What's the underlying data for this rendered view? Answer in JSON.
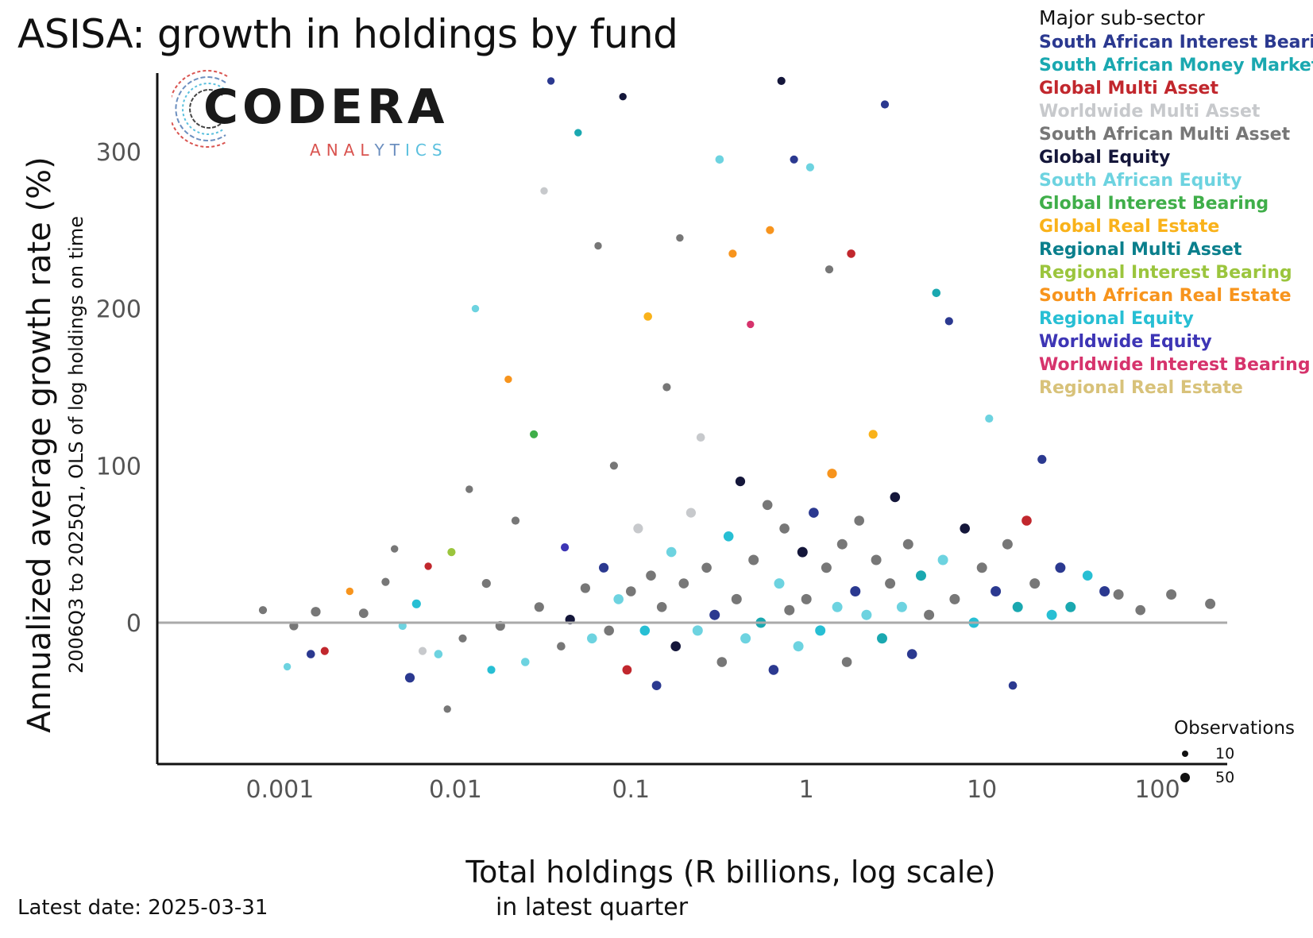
{
  "title": "ASISA: growth in holdings by fund",
  "logo": {
    "word": "CODERA",
    "sub": "ANALYTICS"
  },
  "footer": {
    "latest_date": "Latest date: 2025-03-31"
  },
  "colors": {
    "axis": "#111111",
    "zero_line": "#aaaaaa",
    "logo_sub_gradient": [
      "#d9534f",
      "#6c8fbf",
      "#5bc0de"
    ]
  },
  "legend": {
    "title": "Major sub-sector",
    "items": [
      {
        "label": "South African Interest Bearing",
        "color": "#2b3990"
      },
      {
        "label": "South African Money Market",
        "color": "#1aa8b0"
      },
      {
        "label": "Global Multi Asset",
        "color": "#c1272d"
      },
      {
        "label": "Worldwide Multi Asset",
        "color": "#c7c9cc"
      },
      {
        "label": "South African Multi Asset",
        "color": "#777777"
      },
      {
        "label": "Global Equity",
        "color": "#14163a"
      },
      {
        "label": "South African Equity",
        "color": "#6dd3e0"
      },
      {
        "label": "Global Interest Bearing",
        "color": "#3fae49"
      },
      {
        "label": "Global Real Estate",
        "color": "#f9b21a"
      },
      {
        "label": "Regional Multi Asset",
        "color": "#0a7f8c"
      },
      {
        "label": "Regional Interest Bearing",
        "color": "#9bc53d"
      },
      {
        "label": "South African Real Estate",
        "color": "#f7941d"
      },
      {
        "label": "Regional Equity",
        "color": "#27bfd4"
      },
      {
        "label": "Worldwide Equity",
        "color": "#3d35b5"
      },
      {
        "label": "Worldwide Interest Bearing",
        "color": "#d6336c"
      },
      {
        "label": "Regional Real Estate",
        "color": "#d8c27a"
      }
    ]
  },
  "size_legend": {
    "title": "Observations",
    "items": [
      {
        "label": "10",
        "value": 10
      },
      {
        "label": "50",
        "value": 50
      }
    ]
  },
  "chart_data": {
    "type": "scatter",
    "title": "ASISA: growth in holdings by fund",
    "xlabel": "Total holdings (R billions, log scale)",
    "xlabel_sub": "in latest quarter",
    "ylabel": "Annualized average growth rate (%)",
    "ylabel_sub": "2006Q3 to 2025Q1, OLS of log holdings on time",
    "x_scale": "log",
    "x_range": [
      0.0002,
      250
    ],
    "y_range": [
      -90,
      350
    ],
    "x_ticks": [
      {
        "value": 0.001,
        "label": "0.001"
      },
      {
        "value": 0.01,
        "label": "0.01"
      },
      {
        "value": 0.1,
        "label": "0.1"
      },
      {
        "value": 1,
        "label": "1"
      },
      {
        "value": 10,
        "label": "10"
      },
      {
        "value": 100,
        "label": "100"
      }
    ],
    "y_ticks": [
      {
        "value": 0,
        "label": "0"
      },
      {
        "value": 100,
        "label": "100"
      },
      {
        "value": 200,
        "label": "200"
      },
      {
        "value": 300,
        "label": "300"
      }
    ],
    "reference_line": {
      "y": 0
    },
    "grid": false,
    "legend_position": "top-right",
    "point_size_variable": "Observations",
    "points": [
      {
        "x": 0.0008,
        "y": 8,
        "s": 20,
        "g": 4
      },
      {
        "x": 0.0011,
        "y": -28,
        "s": 15,
        "g": 6
      },
      {
        "x": 0.0012,
        "y": -2,
        "s": 30,
        "g": 4
      },
      {
        "x": 0.0015,
        "y": -20,
        "s": 25,
        "g": 0
      },
      {
        "x": 0.0016,
        "y": 7,
        "s": 40,
        "g": 4
      },
      {
        "x": 0.0018,
        "y": -18,
        "s": 20,
        "g": 2
      },
      {
        "x": 0.0025,
        "y": 20,
        "s": 15,
        "g": 11
      },
      {
        "x": 0.003,
        "y": 6,
        "s": 35,
        "g": 4
      },
      {
        "x": 0.004,
        "y": 26,
        "s": 20,
        "g": 4
      },
      {
        "x": 0.0045,
        "y": 47,
        "s": 15,
        "g": 4
      },
      {
        "x": 0.005,
        "y": -2,
        "s": 20,
        "g": 6
      },
      {
        "x": 0.0055,
        "y": -35,
        "s": 40,
        "g": 0
      },
      {
        "x": 0.006,
        "y": 12,
        "s": 30,
        "g": 12
      },
      {
        "x": 0.0065,
        "y": -18,
        "s": 20,
        "g": 3
      },
      {
        "x": 0.007,
        "y": 36,
        "s": 15,
        "g": 2
      },
      {
        "x": 0.008,
        "y": -20,
        "s": 25,
        "g": 6
      },
      {
        "x": 0.009,
        "y": -55,
        "s": 15,
        "g": 4
      },
      {
        "x": 0.0095,
        "y": 45,
        "s": 20,
        "g": 10
      },
      {
        "x": 0.011,
        "y": -10,
        "s": 20,
        "g": 4
      },
      {
        "x": 0.012,
        "y": 85,
        "s": 15,
        "g": 4
      },
      {
        "x": 0.013,
        "y": 200,
        "s": 15,
        "g": 6
      },
      {
        "x": 0.015,
        "y": 25,
        "s": 30,
        "g": 4
      },
      {
        "x": 0.016,
        "y": -30,
        "s": 20,
        "g": 12
      },
      {
        "x": 0.018,
        "y": -2,
        "s": 40,
        "g": 4
      },
      {
        "x": 0.02,
        "y": 155,
        "s": 15,
        "g": 11
      },
      {
        "x": 0.022,
        "y": 65,
        "s": 20,
        "g": 4
      },
      {
        "x": 0.025,
        "y": -25,
        "s": 25,
        "g": 6
      },
      {
        "x": 0.028,
        "y": 120,
        "s": 20,
        "g": 7
      },
      {
        "x": 0.03,
        "y": 10,
        "s": 40,
        "g": 4
      },
      {
        "x": 0.032,
        "y": 275,
        "s": 15,
        "g": 3
      },
      {
        "x": 0.035,
        "y": 345,
        "s": 15,
        "g": 0
      },
      {
        "x": 0.04,
        "y": -15,
        "s": 25,
        "g": 4
      },
      {
        "x": 0.042,
        "y": 48,
        "s": 20,
        "g": 13
      },
      {
        "x": 0.045,
        "y": 2,
        "s": 40,
        "g": 5
      },
      {
        "x": 0.05,
        "y": 312,
        "s": 15,
        "g": 1
      },
      {
        "x": 0.055,
        "y": 22,
        "s": 40,
        "g": 4
      },
      {
        "x": 0.06,
        "y": -10,
        "s": 45,
        "g": 6
      },
      {
        "x": 0.065,
        "y": 240,
        "s": 15,
        "g": 4
      },
      {
        "x": 0.07,
        "y": 35,
        "s": 40,
        "g": 0
      },
      {
        "x": 0.075,
        "y": -5,
        "s": 45,
        "g": 4
      },
      {
        "x": 0.08,
        "y": 100,
        "s": 20,
        "g": 4
      },
      {
        "x": 0.085,
        "y": 15,
        "s": 45,
        "g": 6
      },
      {
        "x": 0.09,
        "y": 335,
        "s": 15,
        "g": 5
      },
      {
        "x": 0.095,
        "y": -30,
        "s": 35,
        "g": 2
      },
      {
        "x": 0.1,
        "y": 20,
        "s": 45,
        "g": 4
      },
      {
        "x": 0.11,
        "y": 60,
        "s": 40,
        "g": 3
      },
      {
        "x": 0.12,
        "y": -5,
        "s": 45,
        "g": 12
      },
      {
        "x": 0.125,
        "y": 195,
        "s": 25,
        "g": 8
      },
      {
        "x": 0.13,
        "y": 30,
        "s": 45,
        "g": 4
      },
      {
        "x": 0.14,
        "y": -40,
        "s": 35,
        "g": 0
      },
      {
        "x": 0.15,
        "y": 10,
        "s": 45,
        "g": 4
      },
      {
        "x": 0.16,
        "y": 150,
        "s": 20,
        "g": 4
      },
      {
        "x": 0.17,
        "y": 45,
        "s": 45,
        "g": 6
      },
      {
        "x": 0.18,
        "y": -15,
        "s": 45,
        "g": 5
      },
      {
        "x": 0.19,
        "y": 245,
        "s": 15,
        "g": 4
      },
      {
        "x": 0.2,
        "y": 25,
        "s": 45,
        "g": 4
      },
      {
        "x": 0.22,
        "y": 70,
        "s": 40,
        "g": 3
      },
      {
        "x": 0.24,
        "y": -5,
        "s": 50,
        "g": 6
      },
      {
        "x": 0.25,
        "y": 118,
        "s": 25,
        "g": 3
      },
      {
        "x": 0.27,
        "y": 35,
        "s": 45,
        "g": 4
      },
      {
        "x": 0.3,
        "y": 5,
        "s": 50,
        "g": 0
      },
      {
        "x": 0.32,
        "y": 295,
        "s": 25,
        "g": 6
      },
      {
        "x": 0.33,
        "y": -25,
        "s": 45,
        "g": 4
      },
      {
        "x": 0.36,
        "y": 55,
        "s": 45,
        "g": 12
      },
      {
        "x": 0.38,
        "y": 235,
        "s": 20,
        "g": 11
      },
      {
        "x": 0.4,
        "y": 15,
        "s": 50,
        "g": 4
      },
      {
        "x": 0.42,
        "y": 90,
        "s": 40,
        "g": 5
      },
      {
        "x": 0.45,
        "y": -10,
        "s": 50,
        "g": 6
      },
      {
        "x": 0.48,
        "y": 190,
        "s": 15,
        "g": 14
      },
      {
        "x": 0.5,
        "y": 40,
        "s": 50,
        "g": 4
      },
      {
        "x": 0.55,
        "y": 0,
        "s": 50,
        "g": 1
      },
      {
        "x": 0.6,
        "y": 75,
        "s": 45,
        "g": 4
      },
      {
        "x": 0.62,
        "y": 250,
        "s": 20,
        "g": 11
      },
      {
        "x": 0.65,
        "y": -30,
        "s": 45,
        "g": 0
      },
      {
        "x": 0.7,
        "y": 25,
        "s": 50,
        "g": 6
      },
      {
        "x": 0.72,
        "y": 345,
        "s": 20,
        "g": 5
      },
      {
        "x": 0.75,
        "y": 60,
        "s": 45,
        "g": 4
      },
      {
        "x": 0.8,
        "y": 8,
        "s": 50,
        "g": 4
      },
      {
        "x": 0.85,
        "y": 295,
        "s": 20,
        "g": 0
      },
      {
        "x": 0.9,
        "y": -15,
        "s": 50,
        "g": 6
      },
      {
        "x": 0.95,
        "y": 45,
        "s": 50,
        "g": 5
      },
      {
        "x": 1.0,
        "y": 15,
        "s": 50,
        "g": 4
      },
      {
        "x": 1.05,
        "y": 290,
        "s": 20,
        "g": 6
      },
      {
        "x": 1.1,
        "y": 70,
        "s": 45,
        "g": 0
      },
      {
        "x": 1.2,
        "y": -5,
        "s": 50,
        "g": 12
      },
      {
        "x": 1.3,
        "y": 35,
        "s": 50,
        "g": 4
      },
      {
        "x": 1.35,
        "y": 225,
        "s": 20,
        "g": 4
      },
      {
        "x": 1.4,
        "y": 95,
        "s": 40,
        "g": 11
      },
      {
        "x": 1.5,
        "y": 10,
        "s": 50,
        "g": 6
      },
      {
        "x": 1.6,
        "y": 50,
        "s": 50,
        "g": 4
      },
      {
        "x": 1.7,
        "y": -25,
        "s": 45,
        "g": 4
      },
      {
        "x": 1.8,
        "y": 235,
        "s": 25,
        "g": 2
      },
      {
        "x": 1.9,
        "y": 20,
        "s": 50,
        "g": 0
      },
      {
        "x": 2.0,
        "y": 65,
        "s": 45,
        "g": 4
      },
      {
        "x": 2.2,
        "y": 5,
        "s": 50,
        "g": 6
      },
      {
        "x": 2.4,
        "y": 120,
        "s": 30,
        "g": 8
      },
      {
        "x": 2.5,
        "y": 40,
        "s": 50,
        "g": 4
      },
      {
        "x": 2.7,
        "y": -10,
        "s": 50,
        "g": 1
      },
      {
        "x": 2.8,
        "y": 330,
        "s": 20,
        "g": 0
      },
      {
        "x": 3.0,
        "y": 25,
        "s": 50,
        "g": 4
      },
      {
        "x": 3.2,
        "y": 80,
        "s": 45,
        "g": 5
      },
      {
        "x": 3.5,
        "y": 10,
        "s": 50,
        "g": 6
      },
      {
        "x": 3.8,
        "y": 50,
        "s": 50,
        "g": 4
      },
      {
        "x": 4.0,
        "y": -20,
        "s": 45,
        "g": 0
      },
      {
        "x": 4.5,
        "y": 30,
        "s": 50,
        "g": 1
      },
      {
        "x": 5.0,
        "y": 5,
        "s": 50,
        "g": 4
      },
      {
        "x": 5.5,
        "y": 210,
        "s": 25,
        "g": 1
      },
      {
        "x": 6.0,
        "y": 40,
        "s": 50,
        "g": 6
      },
      {
        "x": 6.5,
        "y": 192,
        "s": 20,
        "g": 0
      },
      {
        "x": 7.0,
        "y": 15,
        "s": 50,
        "g": 4
      },
      {
        "x": 8.0,
        "y": 60,
        "s": 45,
        "g": 5
      },
      {
        "x": 9.0,
        "y": 0,
        "s": 50,
        "g": 12
      },
      {
        "x": 10.0,
        "y": 35,
        "s": 50,
        "g": 4
      },
      {
        "x": 11.0,
        "y": 130,
        "s": 20,
        "g": 6
      },
      {
        "x": 12.0,
        "y": 20,
        "s": 50,
        "g": 0
      },
      {
        "x": 14.0,
        "y": 50,
        "s": 50,
        "g": 4
      },
      {
        "x": 15.0,
        "y": -40,
        "s": 25,
        "g": 0
      },
      {
        "x": 16.0,
        "y": 10,
        "s": 50,
        "g": 1
      },
      {
        "x": 18.0,
        "y": 65,
        "s": 45,
        "g": 2
      },
      {
        "x": 20.0,
        "y": 25,
        "s": 50,
        "g": 4
      },
      {
        "x": 22.0,
        "y": 104,
        "s": 30,
        "g": 0
      },
      {
        "x": 25.0,
        "y": 5,
        "s": 50,
        "g": 12
      },
      {
        "x": 28.0,
        "y": 35,
        "s": 50,
        "g": 0
      },
      {
        "x": 32.0,
        "y": 10,
        "s": 50,
        "g": 1
      },
      {
        "x": 40.0,
        "y": 30,
        "s": 45,
        "g": 12
      },
      {
        "x": 50.0,
        "y": 20,
        "s": 50,
        "g": 0
      },
      {
        "x": 60.0,
        "y": 18,
        "s": 50,
        "g": 4
      },
      {
        "x": 80.0,
        "y": 8,
        "s": 45,
        "g": 4
      },
      {
        "x": 120.0,
        "y": 18,
        "s": 50,
        "g": 4
      },
      {
        "x": 200.0,
        "y": 12,
        "s": 50,
        "g": 4
      }
    ]
  }
}
